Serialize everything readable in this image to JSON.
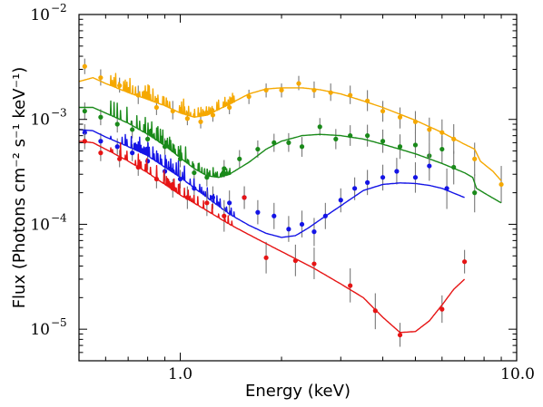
{
  "chart_data": {
    "type": "line",
    "xlabel": "Energy (keV)",
    "ylabel": "Flux (Photons cm⁻² s⁻¹ keV⁻¹)",
    "xscale": "log",
    "yscale": "log",
    "xlim": [
      0.5,
      10.0
    ],
    "ylim": [
      5e-06,
      0.01
    ],
    "x_ticks": [
      1.0,
      10.0
    ],
    "x_tick_labels": [
      "1.0",
      "10.0"
    ],
    "y_ticks": [
      1e-05,
      0.0001,
      0.001,
      0.01
    ],
    "y_tick_labels": [
      {
        "base": "10",
        "exp": "−5"
      },
      {
        "base": "10",
        "exp": "−4"
      },
      {
        "base": "10",
        "exp": "−3"
      },
      {
        "base": "10",
        "exp": "−2"
      }
    ],
    "grid": false,
    "legend": "none",
    "series": [
      {
        "color": "#f5a800",
        "model": [
          [
            0.5,
            0.0023
          ],
          [
            0.55,
            0.0025
          ],
          [
            0.6,
            0.0022
          ],
          [
            0.7,
            0.0018
          ],
          [
            0.8,
            0.00155
          ],
          [
            0.9,
            0.00135
          ],
          [
            1.0,
            0.00115
          ],
          [
            1.1,
            0.00105
          ],
          [
            1.2,
            0.0011
          ],
          [
            1.4,
            0.0014
          ],
          [
            1.6,
            0.00175
          ],
          [
            1.8,
            0.00195
          ],
          [
            2.0,
            0.002
          ],
          [
            2.3,
            0.002
          ],
          [
            2.6,
            0.00192
          ],
          [
            3.0,
            0.00175
          ],
          [
            3.5,
            0.0015
          ],
          [
            4.0,
            0.0013
          ],
          [
            5.0,
            0.00098
          ],
          [
            6.0,
            0.00075
          ],
          [
            7.0,
            0.00058
          ],
          [
            7.5,
            0.00052
          ],
          [
            7.8,
            0.0004
          ],
          [
            8.5,
            0.00032
          ],
          [
            9.0,
            0.00026
          ]
        ],
        "points": [
          {
            "x": 0.52,
            "y": 0.0032,
            "lo": 0.0027,
            "hi": 0.0038
          },
          {
            "x": 0.58,
            "y": 0.0025,
            "lo": 0.0021,
            "hi": 0.003
          },
          {
            "x": 0.66,
            "y": 0.0021,
            "lo": 0.0018,
            "hi": 0.0025
          },
          {
            "x": 0.75,
            "y": 0.0017,
            "lo": 0.0014,
            "hi": 0.0021
          },
          {
            "x": 0.85,
            "y": 0.0013,
            "lo": 0.0011,
            "hi": 0.0016
          },
          {
            "x": 0.95,
            "y": 0.0012,
            "lo": 0.001,
            "hi": 0.0015
          },
          {
            "x": 1.05,
            "y": 0.00102,
            "lo": 0.00088,
            "hi": 0.00118
          },
          {
            "x": 1.15,
            "y": 0.00095,
            "lo": 0.00082,
            "hi": 0.0011
          },
          {
            "x": 1.25,
            "y": 0.0011,
            "lo": 0.00095,
            "hi": 0.00128
          },
          {
            "x": 1.4,
            "y": 0.0013,
            "lo": 0.00112,
            "hi": 0.0015
          },
          {
            "x": 1.6,
            "y": 0.00165,
            "lo": 0.0014,
            "hi": 0.00192
          },
          {
            "x": 1.8,
            "y": 0.0019,
            "lo": 0.00162,
            "hi": 0.0022
          },
          {
            "x": 2.0,
            "y": 0.0019,
            "lo": 0.00162,
            "hi": 0.0022
          },
          {
            "x": 2.25,
            "y": 0.0022,
            "lo": 0.0019,
            "hi": 0.0026
          },
          {
            "x": 2.5,
            "y": 0.0019,
            "lo": 0.0016,
            "hi": 0.0023
          },
          {
            "x": 2.8,
            "y": 0.0018,
            "lo": 0.0015,
            "hi": 0.0022
          },
          {
            "x": 3.2,
            "y": 0.0017,
            "lo": 0.0014,
            "hi": 0.0021
          },
          {
            "x": 3.6,
            "y": 0.0015,
            "lo": 0.0012,
            "hi": 0.0019
          },
          {
            "x": 4.0,
            "y": 0.0012,
            "lo": 0.00095,
            "hi": 0.0015
          },
          {
            "x": 4.5,
            "y": 0.00105,
            "lo": 0.00082,
            "hi": 0.0013
          },
          {
            "x": 5.0,
            "y": 0.00095,
            "lo": 0.00074,
            "hi": 0.0012
          },
          {
            "x": 5.5,
            "y": 0.0008,
            "lo": 0.00061,
            "hi": 0.00104
          },
          {
            "x": 6.0,
            "y": 0.00075,
            "lo": 0.00056,
            "hi": 0.001
          },
          {
            "x": 6.5,
            "y": 0.00065,
            "lo": 0.00047,
            "hi": 0.0009
          },
          {
            "x": 7.5,
            "y": 0.00042,
            "lo": 0.00029,
            "hi": 0.0006
          },
          {
            "x": 9.0,
            "y": 0.00024,
            "lo": 0.00016,
            "hi": 0.00036
          }
        ]
      },
      {
        "color": "#1a8a1a",
        "model": [
          [
            0.5,
            0.0013
          ],
          [
            0.55,
            0.0013
          ],
          [
            0.6,
            0.00115
          ],
          [
            0.7,
            0.00092
          ],
          [
            0.8,
            0.00072
          ],
          [
            0.9,
            0.00056
          ],
          [
            1.0,
            0.00043
          ],
          [
            1.1,
            0.00034
          ],
          [
            1.2,
            0.00029
          ],
          [
            1.3,
            0.00028
          ],
          [
            1.4,
            0.0003
          ],
          [
            1.6,
            0.00039
          ],
          [
            1.8,
            0.00052
          ],
          [
            2.0,
            0.00062
          ],
          [
            2.3,
            0.0007
          ],
          [
            2.6,
            0.00072
          ],
          [
            3.0,
            0.0007
          ],
          [
            3.5,
            0.00065
          ],
          [
            4.0,
            0.00058
          ],
          [
            5.0,
            0.00047
          ],
          [
            6.0,
            0.00038
          ],
          [
            7.0,
            0.00031
          ],
          [
            7.4,
            0.00028
          ],
          [
            7.6,
            0.00022
          ],
          [
            8.2,
            0.00019
          ],
          [
            9.0,
            0.00016
          ]
        ],
        "points": [
          {
            "x": 0.52,
            "y": 0.0012,
            "lo": 0.001,
            "hi": 0.00145
          },
          {
            "x": 0.58,
            "y": 0.00105,
            "lo": 0.00088,
            "hi": 0.00125
          },
          {
            "x": 0.65,
            "y": 0.0009,
            "lo": 0.00075,
            "hi": 0.00108
          },
          {
            "x": 0.72,
            "y": 0.0008,
            "lo": 0.00066,
            "hi": 0.00097
          },
          {
            "x": 0.8,
            "y": 0.00065,
            "lo": 0.00054,
            "hi": 0.00079
          },
          {
            "x": 0.9,
            "y": 0.00055,
            "lo": 0.00046,
            "hi": 0.00066
          },
          {
            "x": 1.0,
            "y": 0.00042,
            "lo": 0.00035,
            "hi": 0.0005
          },
          {
            "x": 1.1,
            "y": 0.00031,
            "lo": 0.00026,
            "hi": 0.00037
          },
          {
            "x": 1.2,
            "y": 0.00028,
            "lo": 0.00023,
            "hi": 0.00034
          },
          {
            "x": 1.35,
            "y": 0.00034,
            "lo": 0.00028,
            "hi": 0.00041
          },
          {
            "x": 1.5,
            "y": 0.00042,
            "lo": 0.00035,
            "hi": 0.00051
          },
          {
            "x": 1.7,
            "y": 0.00052,
            "lo": 0.00043,
            "hi": 0.00063
          },
          {
            "x": 1.9,
            "y": 0.0006,
            "lo": 0.00049,
            "hi": 0.00073
          },
          {
            "x": 2.1,
            "y": 0.0006,
            "lo": 0.00049,
            "hi": 0.00074
          },
          {
            "x": 2.3,
            "y": 0.00055,
            "lo": 0.00044,
            "hi": 0.00068
          },
          {
            "x": 2.6,
            "y": 0.00085,
            "lo": 0.0007,
            "hi": 0.00103
          },
          {
            "x": 2.9,
            "y": 0.00065,
            "lo": 0.00052,
            "hi": 0.00081
          },
          {
            "x": 3.2,
            "y": 0.0007,
            "lo": 0.00056,
            "hi": 0.00088
          },
          {
            "x": 3.6,
            "y": 0.0007,
            "lo": 0.00055,
            "hi": 0.00089
          },
          {
            "x": 4.0,
            "y": 0.00062,
            "lo": 0.00048,
            "hi": 0.0008
          },
          {
            "x": 4.5,
            "y": 0.00055,
            "lo": 0.00042,
            "hi": 0.00072
          },
          {
            "x": 5.0,
            "y": 0.00057,
            "lo": 0.00043,
            "hi": 0.00075
          },
          {
            "x": 5.5,
            "y": 0.00045,
            "lo": 0.00033,
            "hi": 0.00061
          },
          {
            "x": 6.0,
            "y": 0.00052,
            "lo": 0.00038,
            "hi": 0.0007
          },
          {
            "x": 6.5,
            "y": 0.00035,
            "lo": 0.00024,
            "hi": 0.0005
          },
          {
            "x": 7.5,
            "y": 0.0002,
            "lo": 0.00013,
            "hi": 0.0003
          }
        ]
      },
      {
        "color": "#1414e6",
        "model": [
          [
            0.5,
            0.0008
          ],
          [
            0.55,
            0.00078
          ],
          [
            0.6,
            0.00068
          ],
          [
            0.7,
            0.00055
          ],
          [
            0.8,
            0.00045
          ],
          [
            0.9,
            0.00035
          ],
          [
            1.0,
            0.00028
          ],
          [
            1.2,
            0.00018
          ],
          [
            1.4,
            0.000125
          ],
          [
            1.6,
            9.8e-05
          ],
          [
            1.8,
            8.2e-05
          ],
          [
            2.0,
            7.5e-05
          ],
          [
            2.2,
            7.8e-05
          ],
          [
            2.4,
            9.2e-05
          ],
          [
            2.6,
            0.00011
          ],
          [
            3.0,
            0.00015
          ],
          [
            3.5,
            0.00021
          ],
          [
            4.0,
            0.00024
          ],
          [
            4.5,
            0.000248
          ],
          [
            5.0,
            0.000245
          ],
          [
            5.5,
            0.000235
          ],
          [
            6.0,
            0.00022
          ],
          [
            7.0,
            0.00018
          ]
        ],
        "points": [
          {
            "x": 0.52,
            "y": 0.00075,
            "lo": 0.00063,
            "hi": 0.0009
          },
          {
            "x": 0.58,
            "y": 0.00062,
            "lo": 0.00052,
            "hi": 0.00074
          },
          {
            "x": 0.65,
            "y": 0.00055,
            "lo": 0.00046,
            "hi": 0.00066
          },
          {
            "x": 0.72,
            "y": 0.00048,
            "lo": 0.0004,
            "hi": 0.00058
          },
          {
            "x": 0.8,
            "y": 0.0004,
            "lo": 0.00033,
            "hi": 0.00048
          },
          {
            "x": 0.9,
            "y": 0.00032,
            "lo": 0.00026,
            "hi": 0.00039
          },
          {
            "x": 1.0,
            "y": 0.00027,
            "lo": 0.00022,
            "hi": 0.00033
          },
          {
            "x": 1.1,
            "y": 0.00022,
            "lo": 0.00017,
            "hi": 0.00028
          },
          {
            "x": 1.25,
            "y": 0.00018,
            "lo": 0.00014,
            "hi": 0.00023
          },
          {
            "x": 1.4,
            "y": 0.00016,
            "lo": 0.00012,
            "hi": 0.00021
          },
          {
            "x": 1.55,
            "y": 0.00018,
            "lo": 0.00014,
            "hi": 0.00023
          },
          {
            "x": 1.7,
            "y": 0.00013,
            "lo": 0.0001,
            "hi": 0.00017
          },
          {
            "x": 1.9,
            "y": 0.00012,
            "lo": 9e-05,
            "hi": 0.00016
          },
          {
            "x": 2.1,
            "y": 9e-05,
            "lo": 6.8e-05,
            "hi": 0.00012
          },
          {
            "x": 2.3,
            "y": 0.0001,
            "lo": 7.5e-05,
            "hi": 0.000135
          },
          {
            "x": 2.5,
            "y": 8.5e-05,
            "lo": 6.2e-05,
            "hi": 0.000115
          },
          {
            "x": 2.7,
            "y": 0.00012,
            "lo": 9e-05,
            "hi": 0.00016
          },
          {
            "x": 3.0,
            "y": 0.00017,
            "lo": 0.00013,
            "hi": 0.00022
          },
          {
            "x": 3.3,
            "y": 0.00022,
            "lo": 0.00017,
            "hi": 0.00028
          },
          {
            "x": 3.6,
            "y": 0.00025,
            "lo": 0.00019,
            "hi": 0.00033
          },
          {
            "x": 4.0,
            "y": 0.00028,
            "lo": 0.00021,
            "hi": 0.00037
          },
          {
            "x": 4.4,
            "y": 0.00032,
            "lo": 0.00024,
            "hi": 0.00043
          },
          {
            "x": 5.0,
            "y": 0.00028,
            "lo": 0.0002,
            "hi": 0.00039
          },
          {
            "x": 5.5,
            "y": 0.00036,
            "lo": 0.00026,
            "hi": 0.0005
          },
          {
            "x": 6.2,
            "y": 0.00022,
            "lo": 0.00014,
            "hi": 0.00034
          }
        ]
      },
      {
        "color": "#e61414",
        "model": [
          [
            0.5,
            0.00062
          ],
          [
            0.55,
            0.0006
          ],
          [
            0.6,
            0.00052
          ],
          [
            0.7,
            0.0004
          ],
          [
            0.8,
            0.00031
          ],
          [
            0.9,
            0.00024
          ],
          [
            1.0,
            0.00019
          ],
          [
            1.2,
            0.000135
          ],
          [
            1.4,
            0.0001
          ],
          [
            1.7,
            7.2e-05
          ],
          [
            2.0,
            5.5e-05
          ],
          [
            2.5,
            3.8e-05
          ],
          [
            3.0,
            2.7e-05
          ],
          [
            3.5,
            2e-05
          ],
          [
            4.0,
            1.3e-05
          ],
          [
            4.5,
            9.3e-06
          ],
          [
            5.0,
            9.5e-06
          ],
          [
            5.5,
            1.2e-05
          ],
          [
            6.0,
            1.7e-05
          ],
          [
            6.5,
            2.4e-05
          ],
          [
            7.0,
            3e-05
          ]
        ],
        "points": [
          {
            "x": 0.52,
            "y": 0.00062,
            "lo": 0.00052,
            "hi": 0.00074
          },
          {
            "x": 0.58,
            "y": 0.00048,
            "lo": 0.0004,
            "hi": 0.00058
          },
          {
            "x": 0.66,
            "y": 0.00042,
            "lo": 0.00035,
            "hi": 0.00051
          },
          {
            "x": 0.75,
            "y": 0.00035,
            "lo": 0.00029,
            "hi": 0.00043
          },
          {
            "x": 0.85,
            "y": 0.00027,
            "lo": 0.00022,
            "hi": 0.00033
          },
          {
            "x": 0.95,
            "y": 0.00022,
            "lo": 0.00018,
            "hi": 0.00027
          },
          {
            "x": 1.05,
            "y": 0.00018,
            "lo": 0.00014,
            "hi": 0.00023
          },
          {
            "x": 1.2,
            "y": 0.00016,
            "lo": 0.00012,
            "hi": 0.00021
          },
          {
            "x": 1.35,
            "y": 0.00012,
            "lo": 8.5e-05,
            "hi": 0.00017
          },
          {
            "x": 1.55,
            "y": 0.00018,
            "lo": 0.00014,
            "hi": 0.00023
          },
          {
            "x": 1.8,
            "y": 4.8e-05,
            "lo": 3.4e-05,
            "hi": 6.8e-05
          },
          {
            "x": 2.2,
            "y": 4.5e-05,
            "lo": 3.2e-05,
            "hi": 6.4e-05
          },
          {
            "x": 2.5,
            "y": 4.2e-05,
            "lo": 3e-05,
            "hi": 6e-05
          },
          {
            "x": 3.2,
            "y": 2.6e-05,
            "lo": 1.8e-05,
            "hi": 3.8e-05
          },
          {
            "x": 3.8,
            "y": 1.5e-05,
            "lo": 1e-05,
            "hi": 2.2e-05
          },
          {
            "x": 4.5,
            "y": 8.8e-06,
            "lo": 6.8e-06,
            "hi": 1.15e-05
          },
          {
            "x": 6.0,
            "y": 1.55e-05,
            "lo": 1.15e-05,
            "hi": 2.1e-05
          },
          {
            "x": 7.0,
            "y": 4.4e-05,
            "lo": 3.4e-05,
            "hi": 5.7e-05
          }
        ]
      }
    ]
  }
}
